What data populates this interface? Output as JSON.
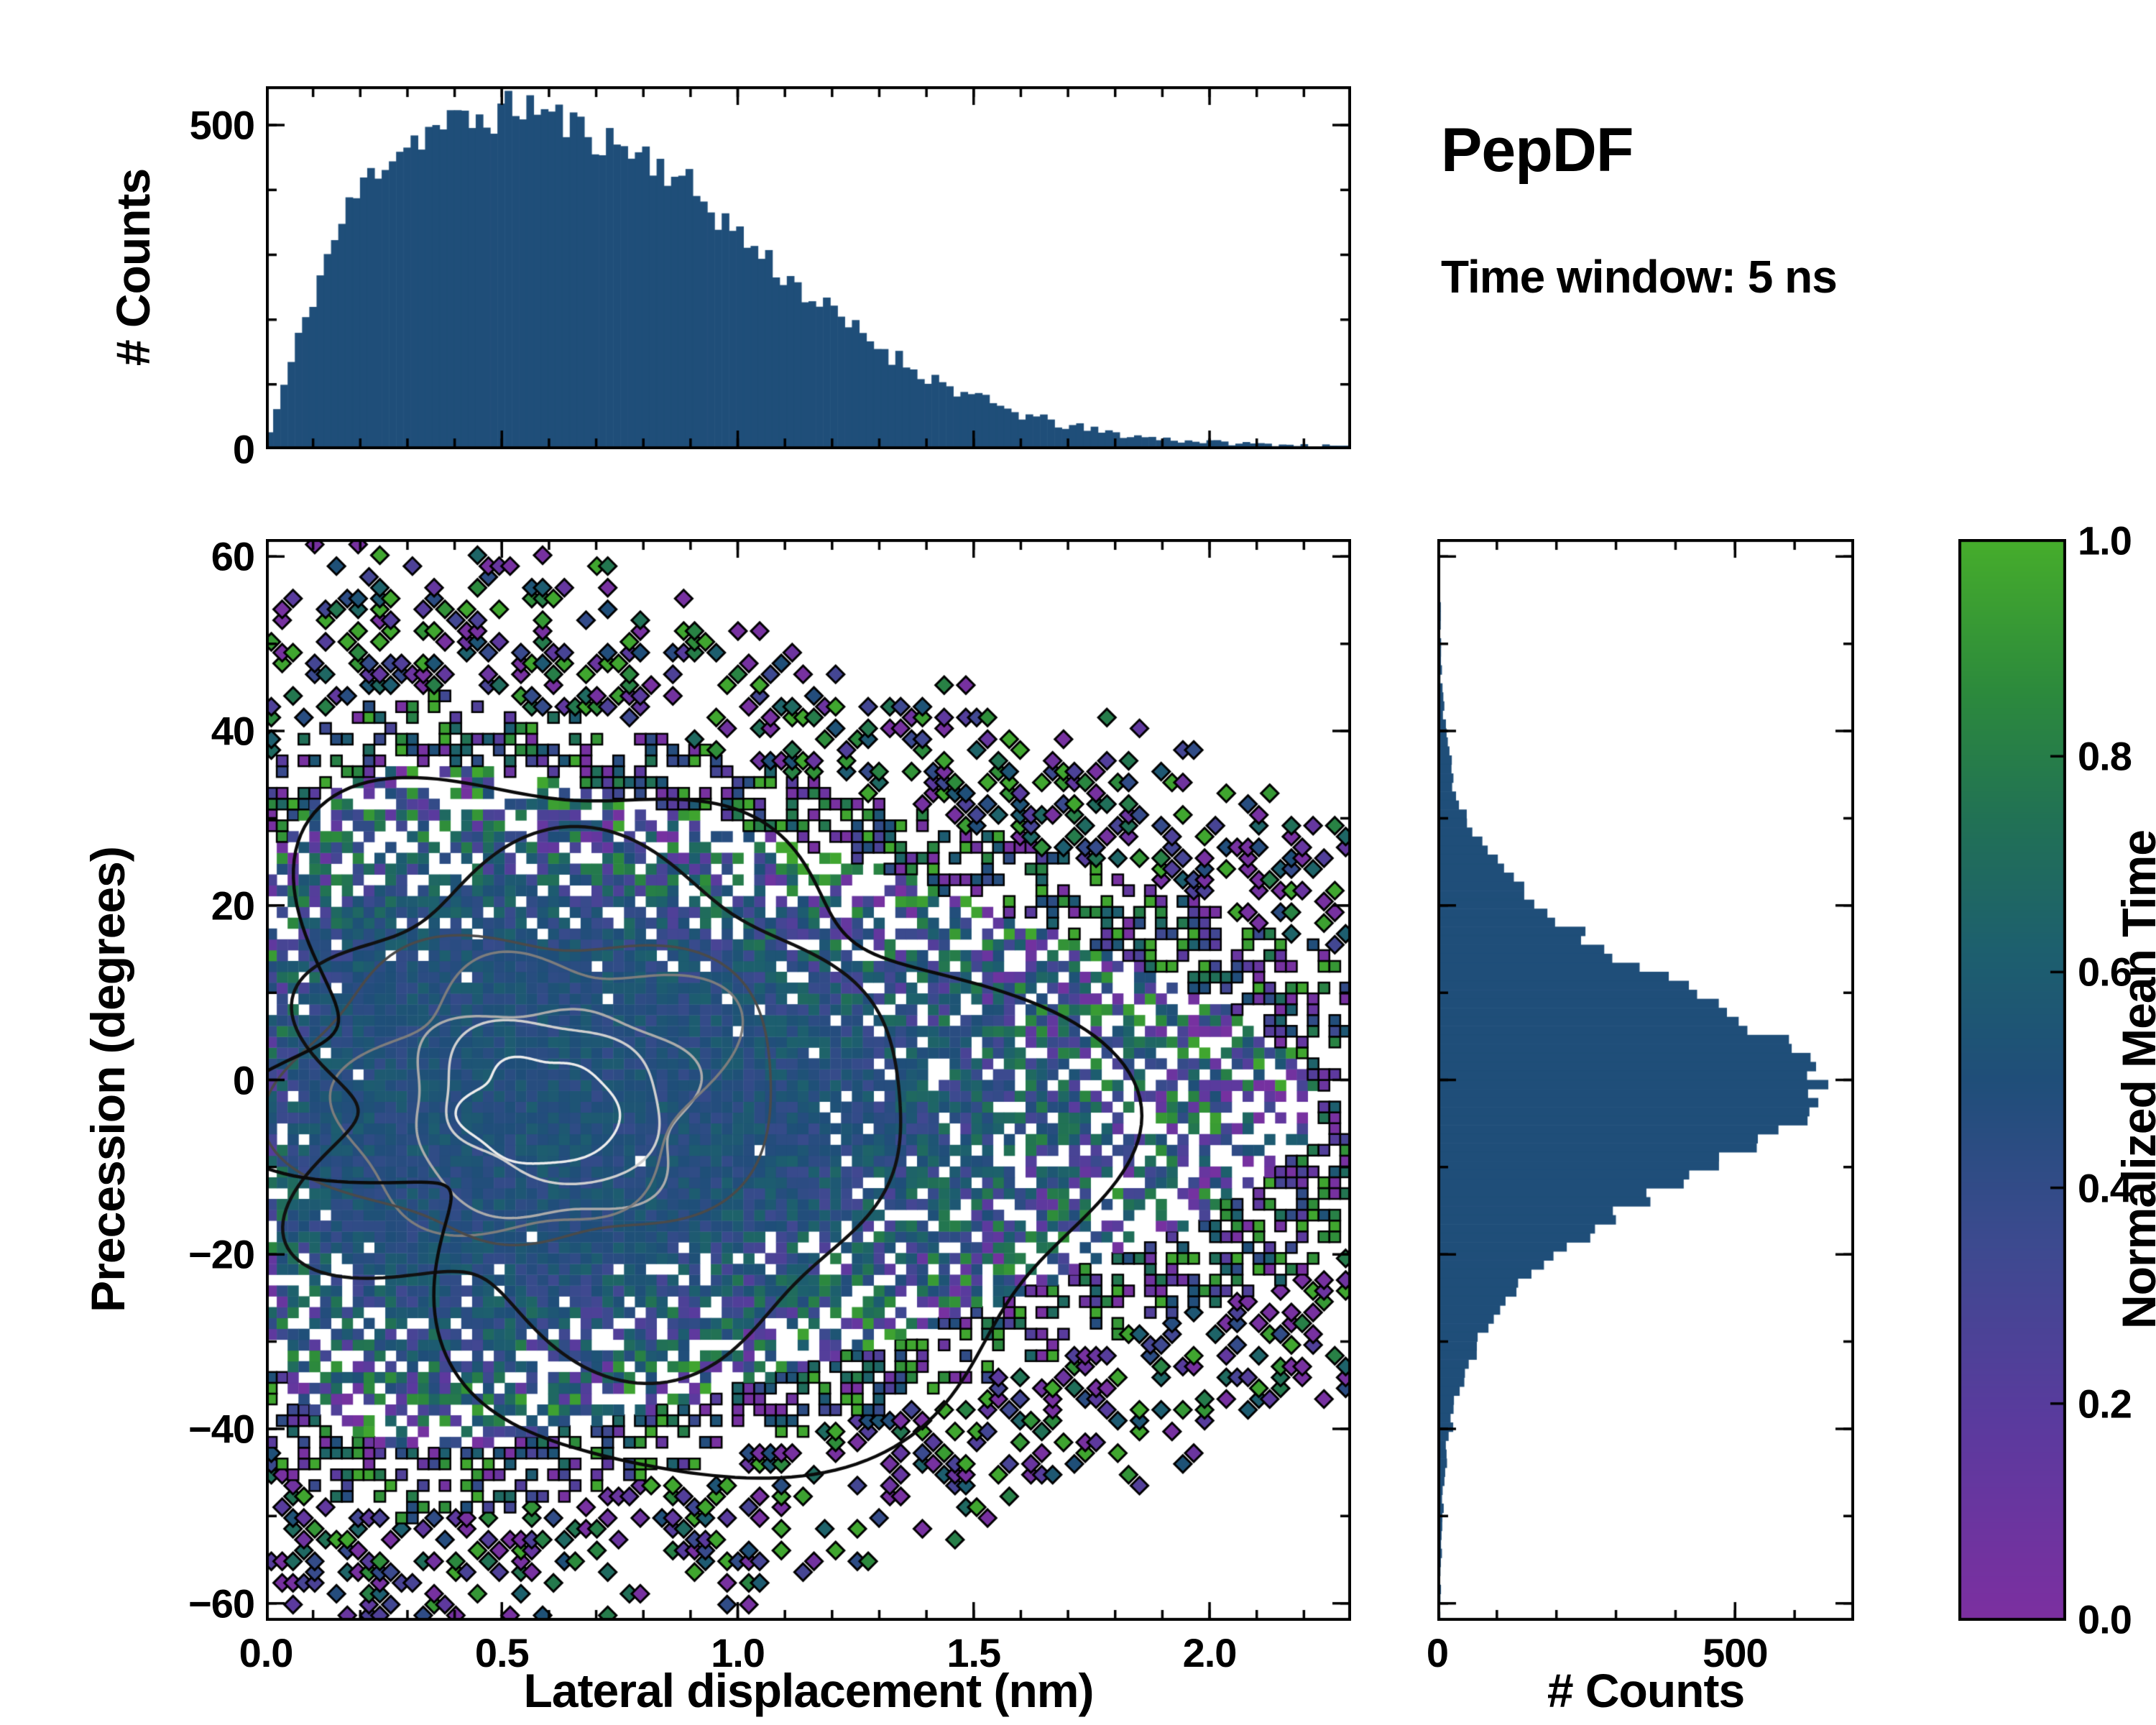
{
  "figure": {
    "background": "#ffffff",
    "annotation": {
      "title": "PepDF",
      "subtitle": "Time window: 5 ns"
    }
  },
  "axes": {
    "top": {
      "ylabel": "# Counts"
    },
    "main": {
      "xlabel": "Lateral displacement (nm)",
      "ylabel": "Precession (degrees)"
    },
    "right": {
      "xlabel": "# Counts"
    },
    "colorbar": {
      "label": "Normalized Mean Time"
    }
  },
  "chart_data": [
    {
      "id": "top-marginal-histogram",
      "type": "bar",
      "role": "marginal histogram of lateral displacement",
      "orientation": "vertical",
      "title": "",
      "xlabel": "",
      "ylabel": "# Counts",
      "xlim": [
        0,
        2.3
      ],
      "ylim": [
        0,
        560
      ],
      "ytick_values": [
        0,
        500
      ],
      "ytick_labels": [
        "0",
        "500"
      ],
      "y_minor_step": 100,
      "x_minor_step": 0.1,
      "bins": 150,
      "bar_color": "#1f4e79",
      "noise": 1.4,
      "seed": 11,
      "envelope_x": [
        0,
        0.05,
        0.1,
        0.15,
        0.2,
        0.25,
        0.3,
        0.35,
        0.4,
        0.45,
        0.5,
        0.55,
        0.6,
        0.65,
        0.7,
        0.75,
        0.8,
        0.85,
        0.9,
        0.95,
        1.0,
        1.05,
        1.1,
        1.15,
        1.2,
        1.25,
        1.3,
        1.35,
        1.4,
        1.45,
        1.5,
        1.55,
        1.6,
        1.65,
        1.7,
        1.75,
        1.8,
        1.85,
        1.9,
        1.95,
        2.0,
        2.05,
        2.1,
        2.15,
        2.2,
        2.25,
        2.3
      ],
      "envelope_counts": [
        5,
        120,
        235,
        330,
        400,
        445,
        470,
        490,
        500,
        505,
        515,
        530,
        515,
        495,
        480,
        465,
        452,
        430,
        400,
        365,
        330,
        298,
        265,
        235,
        206,
        180,
        156,
        132,
        111,
        93,
        77,
        63,
        51,
        41,
        33,
        26,
        21,
        16,
        13,
        10,
        8,
        6,
        5,
        4,
        3,
        2,
        1
      ]
    },
    {
      "id": "main-heatmap",
      "type": "heatmap",
      "role": "2D histogram of precession vs lateral displacement colored by normalized mean time, with density contours",
      "title": "",
      "xlabel": "Lateral displacement (nm)",
      "ylabel": "Precession (degrees)",
      "xlim": [
        0,
        2.3
      ],
      "ylim": [
        -62,
        62
      ],
      "xtick_values": [
        0,
        0.5,
        1.0,
        1.5,
        2.0
      ],
      "xtick_labels": [
        "0.0",
        "0.5",
        "1.0",
        "1.5",
        "2.0"
      ],
      "ytick_values": [
        -60,
        -40,
        -20,
        0,
        20,
        40,
        60
      ],
      "ytick_labels": [
        "−60",
        "−40",
        "−20",
        "0",
        "20",
        "40",
        "60"
      ],
      "x_minor_step": 0.1,
      "y_minor_step": 10,
      "grid_nx": 100,
      "grid_ny": 100,
      "seed": 20,
      "density_model": {
        "center_x": 0.48,
        "center_y": -3,
        "x_shape": 1.4,
        "x_scale": 0.4,
        "x_offset": 0.08,
        "sigma_y_base": 19,
        "sigma_y_slope": -3
      },
      "value_model": {
        "mean": 0.5,
        "spread_min": 0.22,
        "spread_range": 1.15
      },
      "colormap": [
        [
          0.0,
          "#7c2fa0"
        ],
        [
          0.18,
          "#5b3a9e"
        ],
        [
          0.35,
          "#3c4a8f"
        ],
        [
          0.5,
          "#1f4e79"
        ],
        [
          0.62,
          "#1d5f6e"
        ],
        [
          0.74,
          "#217155"
        ],
        [
          0.86,
          "#2c8a3c"
        ],
        [
          1.0,
          "#46ad2b"
        ]
      ],
      "contours": {
        "center": [
          0.56,
          -3
        ],
        "rx": 0.52,
        "ry": 21,
        "levels": [
          {
            "scale": 0.3,
            "color": "#ececec"
          },
          {
            "scale": 0.44,
            "color": "#cfcfcf"
          },
          {
            "scale": 0.58,
            "color": "#ababab"
          },
          {
            "scale": 0.74,
            "color": "#7d7d7d"
          },
          {
            "scale": 0.92,
            "color": "#4a4a4a"
          },
          {
            "scale": 1.28,
            "color": "#111111"
          },
          {
            "scale": 1.66,
            "color": "#0b0b0b"
          }
        ]
      }
    },
    {
      "id": "right-marginal-histogram",
      "type": "bar",
      "role": "marginal histogram of precession angle",
      "orientation": "horizontal",
      "title": "",
      "xlabel": "# Counts",
      "ylabel": "",
      "xlim": [
        0,
        700
      ],
      "ylim": [
        -62,
        62
      ],
      "xtick_values": [
        0,
        500
      ],
      "xtick_labels": [
        "0",
        "500"
      ],
      "x_minor_step": 100,
      "bins": 120,
      "bar_color": "#1f4e79",
      "noise": 1.2,
      "seed": 31,
      "envelope_y": [
        -60,
        -55,
        -50,
        -45,
        -40,
        -35,
        -30,
        -25,
        -20,
        -15,
        -10,
        -5,
        0,
        5,
        10,
        15,
        20,
        25,
        30,
        35,
        40,
        45,
        50,
        55,
        60
      ],
      "envelope_counts": [
        1,
        2,
        5,
        10,
        18,
        35,
        65,
        115,
        195,
        305,
        450,
        590,
        640,
        555,
        420,
        280,
        165,
        90,
        45,
        20,
        9,
        4,
        2,
        1,
        0
      ]
    },
    {
      "id": "colorbar",
      "type": "colorbar",
      "label": "Normalized Mean Time",
      "lim": [
        0,
        1
      ],
      "tick_values": [
        0,
        0.2,
        0.4,
        0.6,
        0.8,
        1.0
      ],
      "tick_labels": [
        "0.0",
        "0.2",
        "0.4",
        "0.6",
        "0.8",
        "1.0"
      ]
    }
  ]
}
